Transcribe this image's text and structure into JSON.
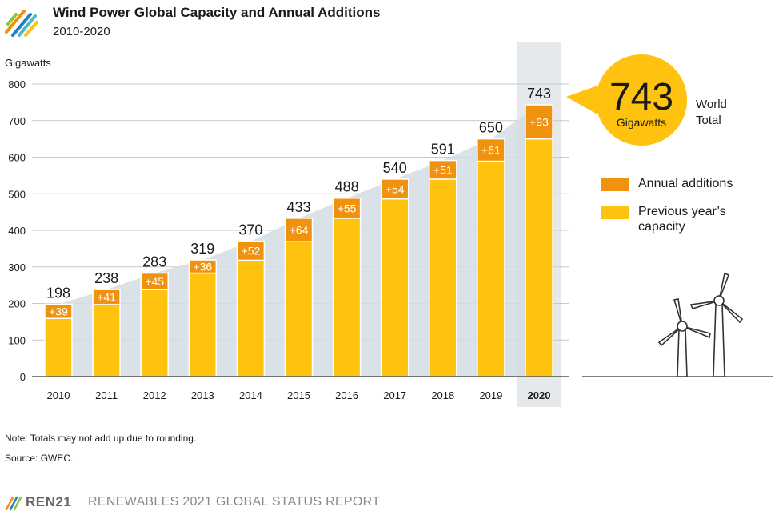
{
  "header": {
    "title": "Wind Power Global Capacity and Annual Additions",
    "subtitle": "2010-2020"
  },
  "colors": {
    "annual_additions": "#F0920E",
    "previous_capacity": "#FFC20E",
    "trend_area": "#D3DDE3",
    "highlight_column": "#E6E9EB",
    "callout": "#FFC20E"
  },
  "callout": {
    "value": "743",
    "unit": "Gigawatts",
    "label_line1": "World",
    "label_line2": "Total"
  },
  "notes": {
    "note": "Note: Totals may not add up due to rounding.",
    "source": "Source: GWEC."
  },
  "footer": {
    "brand": "REN21",
    "report": "RENEWABLES 2021 GLOBAL STATUS REPORT"
  },
  "icons": [
    "ren21-logo-icon",
    "wind-turbine-icon"
  ],
  "chart_data": {
    "type": "bar",
    "stacked": true,
    "title": "Wind Power Global Capacity and Annual Additions",
    "subtitle": "2010-2020",
    "ylabel": "Gigawatts",
    "ylim": [
      0,
      800
    ],
    "yticks": [
      0,
      100,
      200,
      300,
      400,
      500,
      600,
      700,
      800
    ],
    "grid": true,
    "legend_position": "right",
    "categories": [
      "2010",
      "2011",
      "2012",
      "2013",
      "2014",
      "2015",
      "2016",
      "2017",
      "2018",
      "2019",
      "2020"
    ],
    "series": [
      {
        "name": "Previous year’s capacity",
        "values": [
          159,
          197,
          238,
          283,
          318,
          369,
          433,
          486,
          540,
          589,
          650
        ]
      },
      {
        "name": "Annual additions",
        "values": [
          39,
          41,
          45,
          36,
          52,
          64,
          55,
          54,
          51,
          61,
          93
        ]
      }
    ],
    "total_labels": [
      "198",
      "238",
      "283",
      "319",
      "370",
      "433",
      "488",
      "540",
      "591",
      "650",
      "743"
    ],
    "addition_labels": [
      "+39",
      "+41",
      "+45",
      "+36",
      "+52",
      "+64",
      "+55",
      "+54",
      "+51",
      "+61",
      "+93"
    ],
    "highlighted_category": "2020"
  }
}
